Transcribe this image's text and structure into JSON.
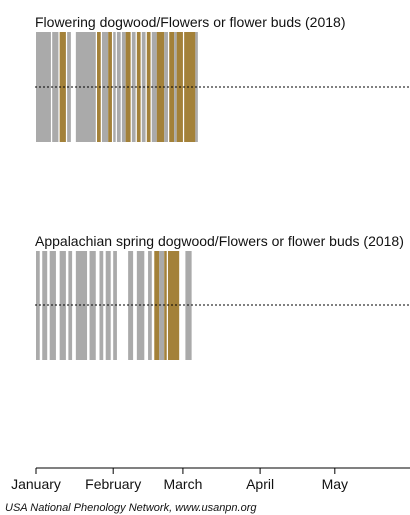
{
  "chart_data": {
    "type": "bar",
    "year": 2018,
    "x_unit": "day of year",
    "xlim": [
      1,
      152
    ],
    "x_ticks": [
      {
        "label": "January",
        "day": 1
      },
      {
        "label": "February",
        "day": 32
      },
      {
        "label": "March",
        "day": 60
      },
      {
        "label": "April",
        "day": 91
      },
      {
        "label": "May",
        "day": 121
      }
    ],
    "status_colors": {
      "no": "#aaaaaa",
      "yes": "#a38139"
    },
    "credit": "USA National Phenology Network, www.usanpn.org",
    "panels": [
      {
        "title": "Flowering dogwood/Flowers or flower buds (2018)",
        "observations": [
          {
            "start": 1,
            "end": 7,
            "status": "no"
          },
          {
            "start": 7.5,
            "end": 10,
            "status": "no"
          },
          {
            "start": 10.5,
            "end": 13,
            "status": "yes"
          },
          {
            "start": 13.5,
            "end": 15,
            "status": "no"
          },
          {
            "start": 17,
            "end": 25,
            "status": "no"
          },
          {
            "start": 25.5,
            "end": 27,
            "status": "yes"
          },
          {
            "start": 27.5,
            "end": 30,
            "status": "no"
          },
          {
            "start": 30,
            "end": 31.5,
            "status": "yes"
          },
          {
            "start": 32,
            "end": 33,
            "status": "no"
          },
          {
            "start": 33.5,
            "end": 35,
            "status": "no"
          },
          {
            "start": 35.5,
            "end": 37,
            "status": "no"
          },
          {
            "start": 37,
            "end": 39,
            "status": "yes"
          },
          {
            "start": 39.5,
            "end": 41,
            "status": "no"
          },
          {
            "start": 41.5,
            "end": 43,
            "status": "yes"
          },
          {
            "start": 43.5,
            "end": 45,
            "status": "no"
          },
          {
            "start": 45.5,
            "end": 47,
            "status": "yes"
          },
          {
            "start": 47.5,
            "end": 49.5,
            "status": "no"
          },
          {
            "start": 49.5,
            "end": 52.5,
            "status": "yes"
          },
          {
            "start": 52.5,
            "end": 54,
            "status": "no"
          },
          {
            "start": 54.5,
            "end": 56.5,
            "status": "yes"
          },
          {
            "start": 56.5,
            "end": 57.5,
            "status": "no"
          },
          {
            "start": 57.5,
            "end": 60,
            "status": "yes"
          },
          {
            "start": 60.5,
            "end": 65,
            "status": "yes"
          },
          {
            "start": 65,
            "end": 66,
            "status": "no"
          }
        ]
      },
      {
        "title": "Appalachian spring dogwood/Flowers or flower buds (2018)",
        "observations": [
          {
            "start": 1,
            "end": 2.5,
            "status": "no"
          },
          {
            "start": 3.5,
            "end": 5.5,
            "status": "no"
          },
          {
            "start": 6.5,
            "end": 9,
            "status": "no"
          },
          {
            "start": 10.5,
            "end": 13,
            "status": "no"
          },
          {
            "start": 14,
            "end": 15.5,
            "status": "no"
          },
          {
            "start": 17,
            "end": 21.5,
            "status": "no"
          },
          {
            "start": 22.5,
            "end": 25,
            "status": "no"
          },
          {
            "start": 26.5,
            "end": 28,
            "status": "no"
          },
          {
            "start": 29,
            "end": 31,
            "status": "no"
          },
          {
            "start": 32,
            "end": 33.5,
            "status": "no"
          },
          {
            "start": 38,
            "end": 40,
            "status": "no"
          },
          {
            "start": 41.5,
            "end": 44.5,
            "status": "no"
          },
          {
            "start": 46,
            "end": 47.5,
            "status": "no"
          },
          {
            "start": 48.5,
            "end": 50.5,
            "status": "yes"
          },
          {
            "start": 50.5,
            "end": 52.5,
            "status": "no"
          },
          {
            "start": 52.5,
            "end": 53.5,
            "status": "yes"
          },
          {
            "start": 54,
            "end": 58.5,
            "status": "yes"
          },
          {
            "start": 61,
            "end": 63.5,
            "status": "no"
          }
        ]
      }
    ]
  }
}
